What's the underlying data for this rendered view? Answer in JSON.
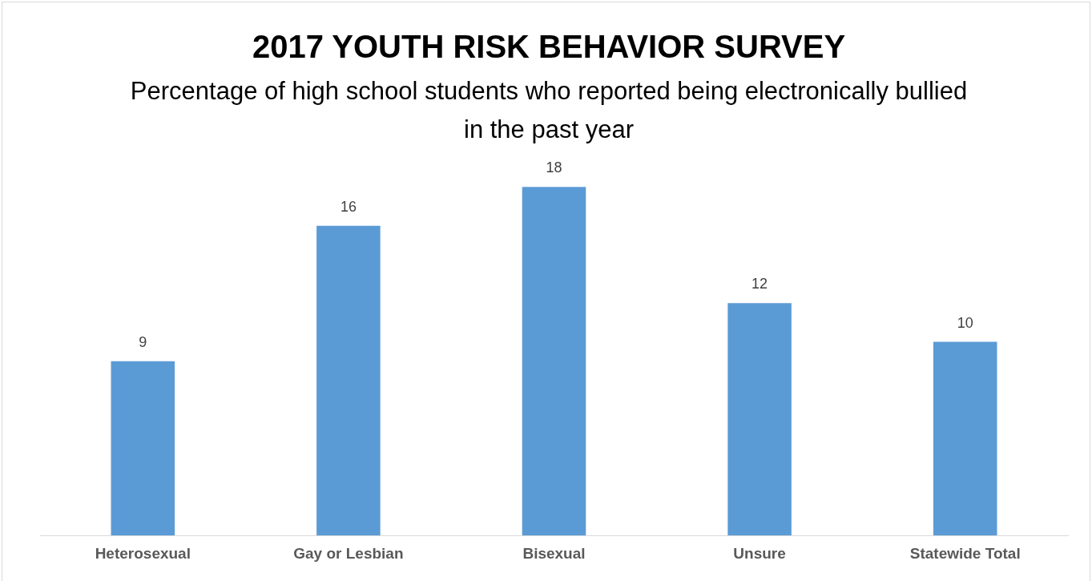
{
  "chart_data": {
    "type": "bar",
    "title": "2017 YOUTH RISK BEHAVIOR SURVEY",
    "subtitle": "Percentage of high school students who reported being electronically bullied in the past year",
    "categories": [
      "Heterosexual",
      "Gay or Lesbian",
      "Bisexual",
      "Unsure",
      "Statewide Total"
    ],
    "values": [
      9,
      16,
      18,
      12,
      10
    ],
    "color": "#5b9bd5",
    "data_labels": true,
    "grid": false,
    "legend": false,
    "tick_labels": "x"
  }
}
